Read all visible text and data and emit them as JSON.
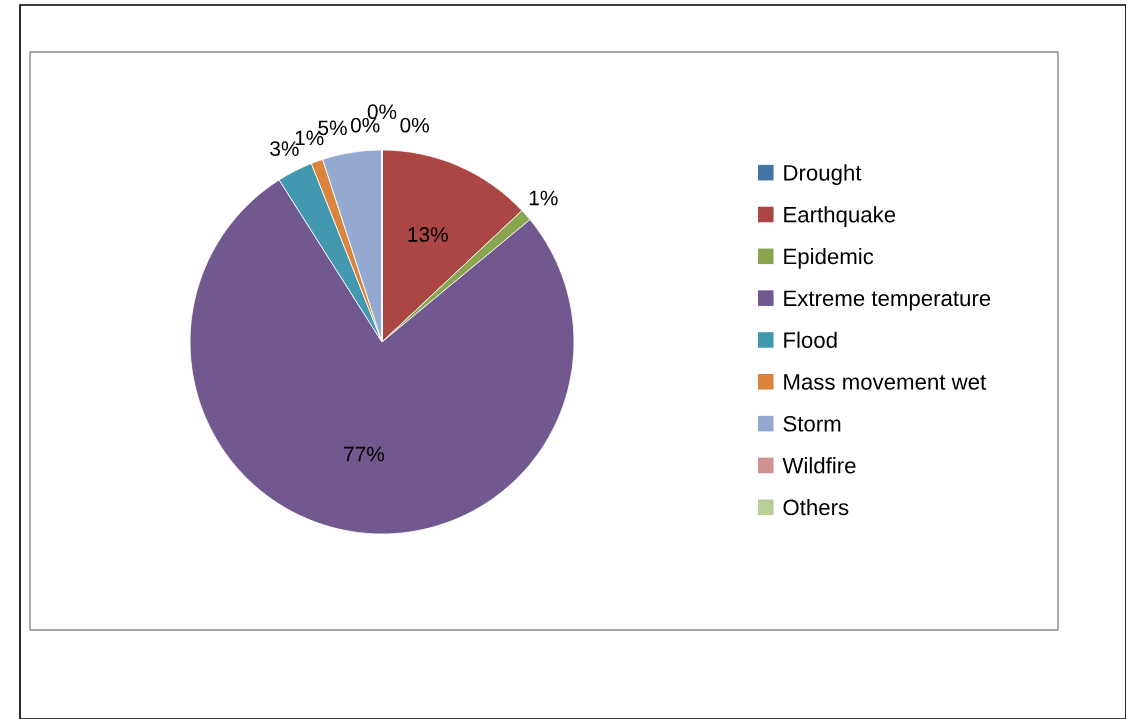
{
  "chart_data": {
    "type": "pie",
    "categories": [
      "Drought",
      "Earthquake",
      "Epidemic",
      "Extreme temperature",
      "Flood",
      "Mass movement wet",
      "Storm",
      "Wildfire",
      "Others"
    ],
    "values": [
      0,
      13,
      1,
      77,
      3,
      1,
      5,
      0,
      0
    ],
    "value_labels": [
      "0%",
      "13%",
      "1%",
      "77%",
      "3%",
      "1%",
      "5%",
      "0%",
      "0%"
    ],
    "colors": [
      "#4572a7",
      "#aa4643",
      "#89a54e",
      "#71588f",
      "#4198af",
      "#db843d",
      "#93a9cf",
      "#d19392",
      "#b9cd96"
    ],
    "legend": "right"
  }
}
